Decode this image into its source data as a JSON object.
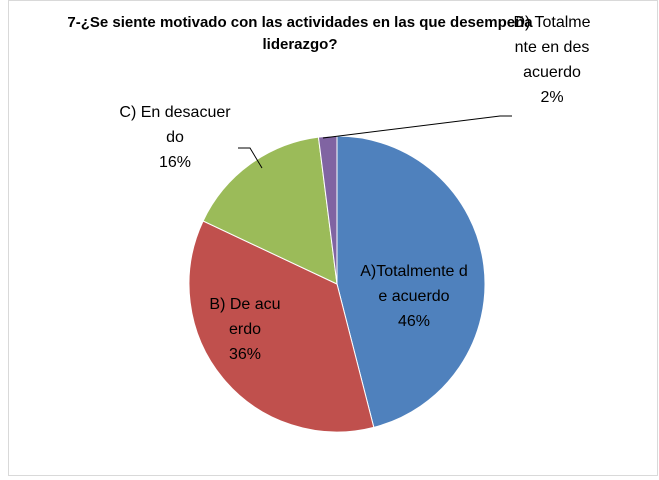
{
  "chart_data": {
    "type": "pie",
    "title": "7-¿Se siente motivado con las actividades en las que desempeña liderazgo?",
    "categories": [
      "A)Totalmente de acuerdo",
      "B) De acuerdo",
      "C) En desacuerdo",
      "D) Totalmente en desacuerdo"
    ],
    "values": [
      46,
      36,
      16,
      2
    ],
    "value_labels": [
      "46%",
      "36%",
      "16%",
      "2%"
    ],
    "colors": [
      "#4f81bd",
      "#c0504d",
      "#9bbb59",
      "#8064a2"
    ]
  }
}
